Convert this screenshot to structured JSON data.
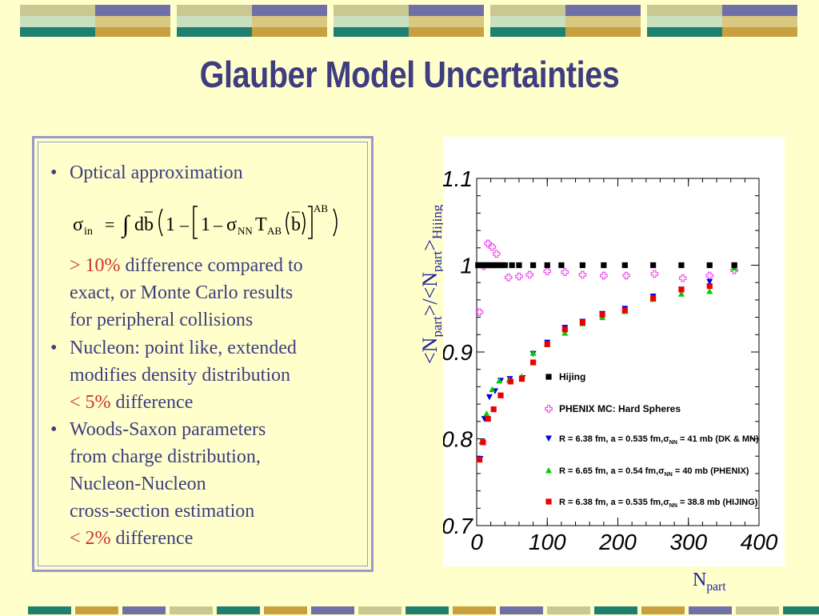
{
  "title": "Glauber Model Uncertainties",
  "text_box": {
    "bullet1": "Optical approximation",
    "formula": {
      "sigma": "σ",
      "in": "in",
      "eq": "=",
      "integral": "∫",
      "db": "d",
      "b": "b",
      "one": "1",
      "minus": "–",
      "sigma_nn": "σ",
      "nn": "NN",
      "T": "T",
      "ab": "AB",
      "sup": "AB"
    },
    "note1_pct": "> 10%",
    "note1_rest": "difference compared to",
    "note1_line2": "exact, or Monte Carlo results",
    "note1_line3": "for peripheral collisions",
    "bullet2_line1": "Nucleon: point like, extended",
    "bullet2_line2": "modifies density distribution",
    "bullet2_pct": "< 5%",
    "bullet2_rest": "difference",
    "bullet3_line1": "Woods-Saxon parameters",
    "bullet3_line2": "from charge distribution,",
    "bullet3_line3": "Nucleon-Nucleon",
    "bullet3_line4": "cross-section estimation",
    "bullet3_pct": "< 2%",
    "bullet3_rest": "difference",
    "bullet_char": "•"
  },
  "axis_titles": {
    "y_main": "<N",
    "y_sub1": "part",
    "y_mid": ">/<N",
    "y_sub2": "part",
    "y_end": ">",
    "y_sub3": "Hijing",
    "x_main": "N",
    "x_sub": "part"
  },
  "colors": {
    "title": "#3d3d80",
    "background": "#ffffcc",
    "hijing": "#000000",
    "phenix_mc": "#ee44ee",
    "dk_mn": "#0000ee",
    "phenix": "#00cc00",
    "hijing_glauber": "#ee0000"
  },
  "chart_data": {
    "type": "scatter",
    "xlim": [
      0,
      400
    ],
    "ylim": [
      0.7,
      1.1
    ],
    "x_ticks": [
      "0",
      "100",
      "200",
      "300",
      "400"
    ],
    "y_ticks": [
      "0.7",
      "0.8",
      "0.9",
      "1",
      "1.1"
    ],
    "series": [
      {
        "name": "Hijing",
        "marker": "square",
        "x": [
          2,
          5,
          8,
          11,
          14,
          17,
          20,
          23,
          26,
          29,
          32,
          36,
          40,
          50,
          60,
          80,
          100,
          120,
          150,
          180,
          210,
          250,
          290,
          330,
          365
        ],
        "y": [
          1,
          1,
          1,
          1,
          1,
          1,
          1,
          1,
          1,
          1,
          1,
          1,
          1,
          1,
          1,
          1,
          1,
          1,
          1,
          1,
          1,
          1,
          1,
          1,
          1
        ]
      },
      {
        "name": "PHENIX MC: Hard Spheres",
        "marker": "open-cross",
        "x": [
          4,
          10,
          16,
          22,
          28,
          45,
          60,
          75,
          100,
          125,
          150,
          180,
          212,
          252,
          292,
          330,
          365
        ],
        "y": [
          0.946,
          0.999,
          1.025,
          1.021,
          1.013,
          0.986,
          0.987,
          0.989,
          0.993,
          0.992,
          0.989,
          0.988,
          0.988,
          0.99,
          0.985,
          0.988,
          0.994
        ]
      },
      {
        "name": "R = 6.38 fm, a = 0.535 fm,σNN = 41 mb (DK & MN)",
        "marker": "triangle-down",
        "x": [
          5,
          11,
          18,
          26,
          34,
          47,
          65,
          80,
          100,
          125,
          150,
          178,
          210,
          250,
          290,
          330,
          365
        ],
        "y": [
          0.777,
          0.823,
          0.848,
          0.855,
          0.867,
          0.869,
          0.87,
          0.898,
          0.911,
          0.928,
          0.935,
          0.944,
          0.95,
          0.964,
          0.972,
          0.981,
          0.998
        ]
      },
      {
        "name": "R = 6.65 fm, a = 0.54 fm,σNN = 40 mb (PHENIX)",
        "marker": "triangle-up",
        "x": [
          7,
          14,
          22,
          32,
          46,
          64,
          80,
          100,
          125,
          150,
          178,
          210,
          250,
          290,
          330,
          365
        ],
        "y": [
          0.797,
          0.829,
          0.857,
          0.867,
          0.868,
          0.872,
          0.899,
          0.909,
          0.922,
          0.933,
          0.94,
          0.947,
          0.961,
          0.967,
          0.97,
          0.997
        ]
      },
      {
        "name": "R = 6.38 fm, a = 0.535 fm,σNN = 38.8 mb (HIJING)",
        "marker": "square",
        "x": [
          4,
          9,
          16,
          24,
          34,
          48,
          64,
          80,
          100,
          125,
          150,
          178,
          210,
          250,
          290,
          330,
          365
        ],
        "y": [
          0.776,
          0.796,
          0.823,
          0.834,
          0.85,
          0.866,
          0.869,
          0.888,
          0.909,
          0.926,
          0.934,
          0.943,
          0.948,
          0.962,
          0.972,
          0.976,
          1
        ]
      }
    ],
    "legend": {
      "position": "right-middle",
      "entries": [
        {
          "label": "Hijing",
          "series": 0
        },
        {
          "label": "PHENIX MC: Hard Spheres",
          "series": 1
        },
        {
          "label": "R = 6.38 fm, a = 0.535 fm,σNN = 41 mb (DK & MN)",
          "series": 2
        },
        {
          "label": "R = 6.65 fm, a = 0.54 fm,σNN = 40 mb (PHENIX)",
          "series": 3
        },
        {
          "label": "R = 6.38 fm, a = 0.535 fm,σNN = 38.8 mb (HIJING)",
          "series": 4
        }
      ]
    }
  }
}
